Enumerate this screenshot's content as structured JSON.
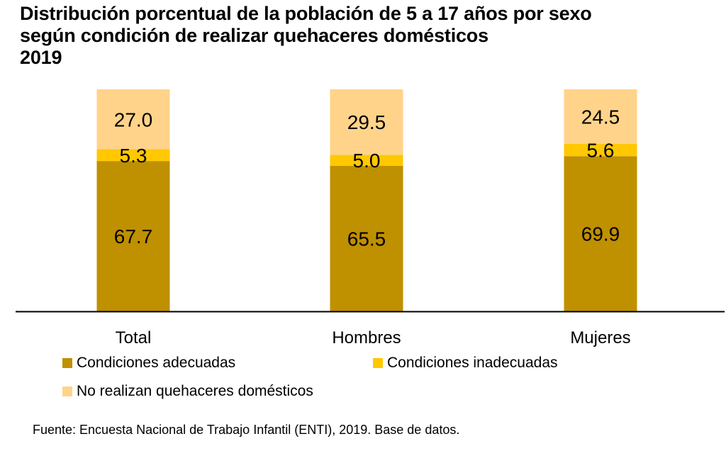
{
  "title": {
    "line1": "Distribución porcentual de la población de 5 a 17 años por sexo",
    "line2": "según condición de realizar quehaceres domésticos",
    "line3": "2019"
  },
  "chart_data": {
    "type": "bar",
    "stacked": true,
    "title": "Distribución porcentual de la población de 5 a 17 años por sexo según condición de realizar quehaceres domésticos 2019",
    "categories": [
      "Total",
      "Hombres",
      "Mujeres"
    ],
    "series": [
      {
        "name": "Condiciones adecuadas",
        "color": "#BF9000",
        "values": [
          67.7,
          65.5,
          69.9
        ]
      },
      {
        "name": "Condiciones inadecuadas",
        "color": "#FFC800",
        "values": [
          5.3,
          5.0,
          5.6
        ]
      },
      {
        "name": "No realizan quehaceres domésticos",
        "color": "#FFD38A",
        "values": [
          27.0,
          29.5,
          24.5
        ]
      }
    ],
    "xlabel": "",
    "ylabel": "",
    "ylim": [
      0,
      100
    ],
    "grid": false,
    "legend": "bottom-left"
  },
  "legend": [
    {
      "label": "Condiciones adecuadas",
      "color": "#BF9000"
    },
    {
      "label": "Condiciones inadecuadas",
      "color": "#FFC800"
    },
    {
      "label": "No realizan quehaceres domésticos",
      "color": "#FFD38A"
    }
  ],
  "source": "Fuente: Encuesta Nacional de Trabajo Infantil (ENTI), 2019. Base de datos."
}
